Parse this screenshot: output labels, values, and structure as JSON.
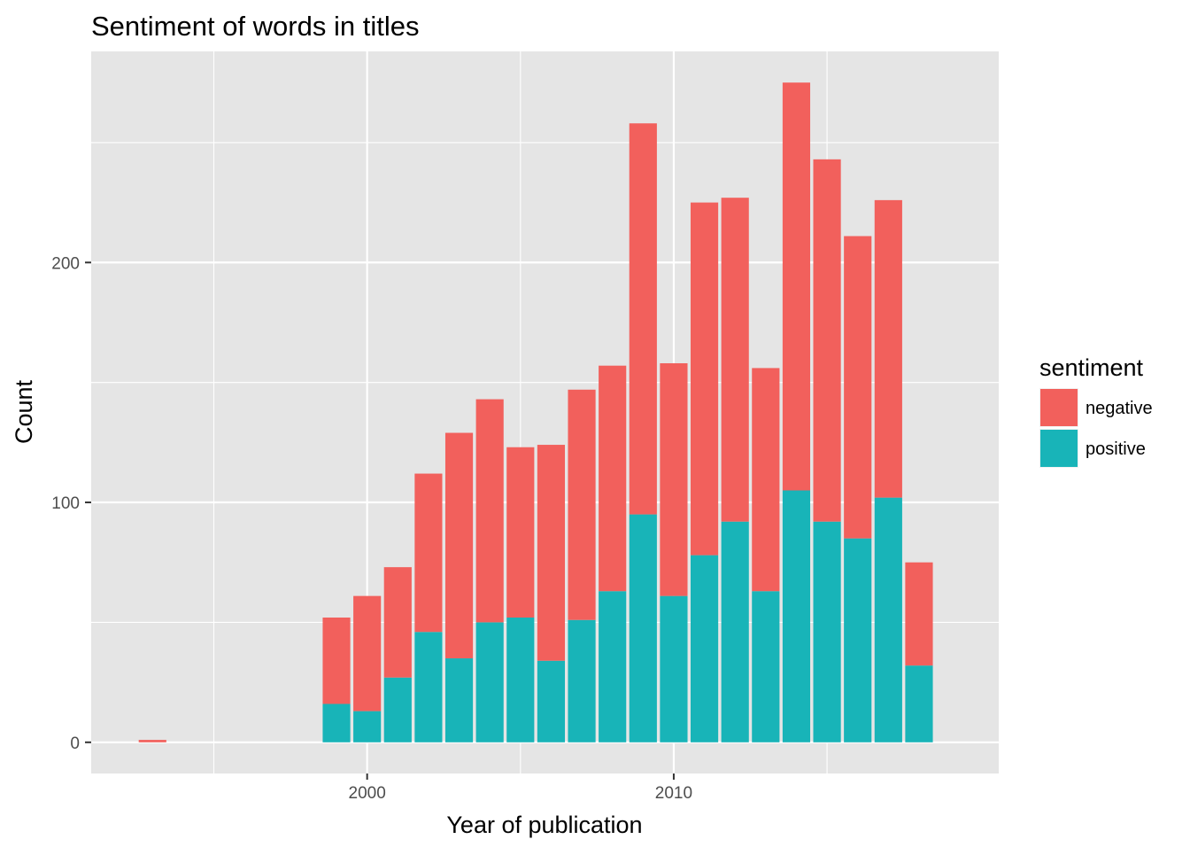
{
  "chart_data": {
    "type": "bar",
    "stacked": true,
    "title": "Sentiment of words in titles",
    "xlabel": "Year of publication",
    "ylabel": "Count",
    "x": [
      1993,
      1999,
      2000,
      2001,
      2002,
      2003,
      2004,
      2005,
      2006,
      2007,
      2008,
      2009,
      2010,
      2011,
      2012,
      2013,
      2014,
      2015,
      2016,
      2017,
      2018
    ],
    "series": [
      {
        "name": "positive",
        "color": "#18b4b8",
        "values": [
          0,
          16,
          13,
          27,
          46,
          35,
          50,
          52,
          34,
          51,
          63,
          95,
          61,
          78,
          92,
          63,
          105,
          92,
          85,
          102,
          32
        ]
      },
      {
        "name": "negative",
        "color": "#f2605c",
        "values": [
          1,
          36,
          48,
          46,
          66,
          94,
          93,
          71,
          90,
          96,
          94,
          163,
          97,
          147,
          135,
          93,
          170,
          151,
          126,
          124,
          43
        ]
      }
    ],
    "xlim": [
      1991,
      2020.6
    ],
    "ylim": [
      -13,
      288
    ],
    "x_ticks": [
      2000,
      2010
    ],
    "x_tick_labels": [
      "2000",
      "2010"
    ],
    "x_minor_ticks": [
      1995,
      2005,
      2015
    ],
    "y_ticks": [
      0,
      100,
      200
    ],
    "y_tick_labels": [
      "0",
      "100",
      "200"
    ],
    "y_minor_ticks": [
      50,
      150,
      250
    ],
    "grid": true,
    "legend": {
      "title": "sentiment",
      "position": "right",
      "entries": [
        {
          "label": "negative",
          "color": "#f2605c"
        },
        {
          "label": "positive",
          "color": "#18b4b8"
        }
      ]
    }
  }
}
